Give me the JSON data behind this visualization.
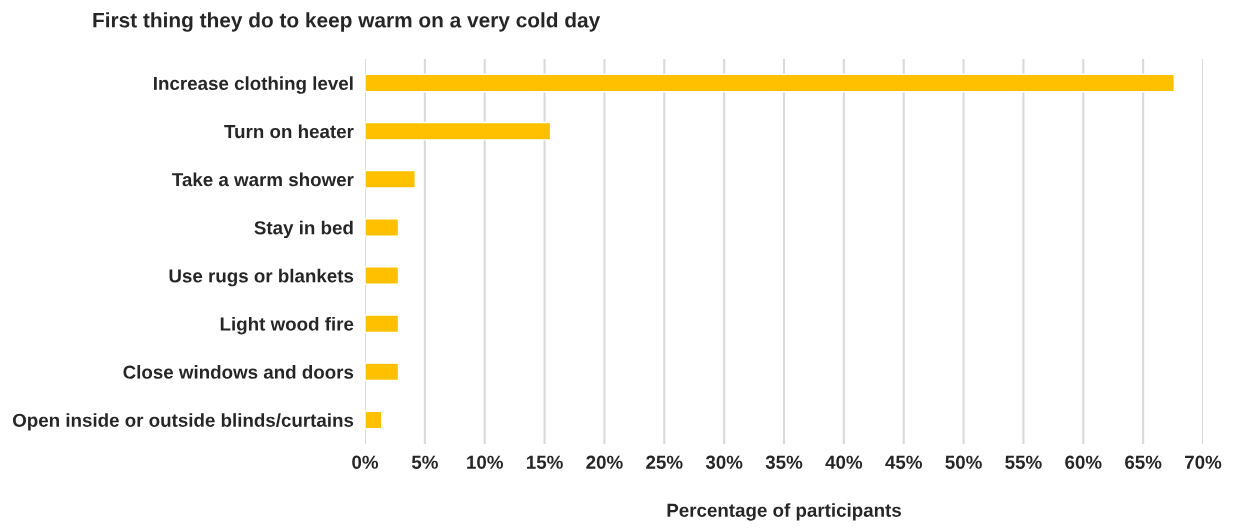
{
  "chart_data": {
    "type": "bar",
    "orientation": "horizontal",
    "title": "First thing they do to keep warm on a very cold day",
    "xlabel": "Percentage of participants",
    "categories": [
      "Increase clothing level",
      "Turn on heater",
      "Take a warm shower",
      "Stay in bed",
      "Use rugs or blankets",
      "Light wood fire",
      "Close windows and doors",
      "Open inside or outside blinds/curtains"
    ],
    "values": [
      67.6,
      15.5,
      4.2,
      2.8,
      2.8,
      2.8,
      2.8,
      1.4
    ],
    "color": "#ffc000",
    "xlim": [
      0,
      70
    ],
    "xticks": [
      {
        "value": 0,
        "label": "0%"
      },
      {
        "value": 5,
        "label": "5%"
      },
      {
        "value": 10,
        "label": "10%"
      },
      {
        "value": 15,
        "label": "15%"
      },
      {
        "value": 20,
        "label": "20%"
      },
      {
        "value": 25,
        "label": "25%"
      },
      {
        "value": 30,
        "label": "30%"
      },
      {
        "value": 35,
        "label": "35%"
      },
      {
        "value": 40,
        "label": "40%"
      },
      {
        "value": 45,
        "label": "45%"
      },
      {
        "value": 50,
        "label": "50%"
      },
      {
        "value": 55,
        "label": "55%"
      },
      {
        "value": 60,
        "label": "60%"
      },
      {
        "value": 65,
        "label": "65%"
      },
      {
        "value": 70,
        "label": "70%"
      }
    ],
    "grid": "x",
    "legend": false
  }
}
